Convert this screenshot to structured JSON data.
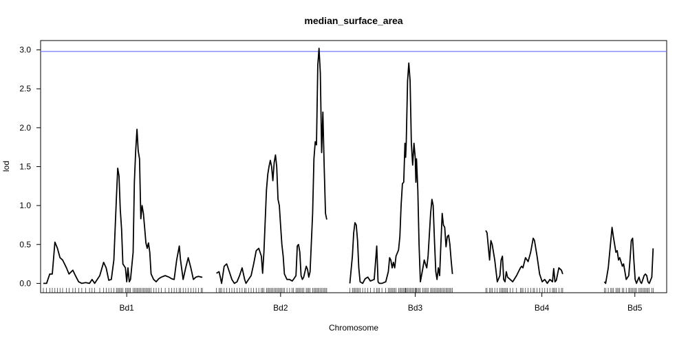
{
  "chart_data": {
    "type": "line",
    "title": "median_surface_area",
    "xlabel": "Chromosome",
    "ylabel": "lod",
    "ylim": [
      -0.12,
      3.12
    ],
    "yticks": [
      0.0,
      0.5,
      1.0,
      1.5,
      2.0,
      2.5,
      3.0
    ],
    "ytick_labels": [
      "0.0",
      "0.5",
      "1.0",
      "1.5",
      "2.0",
      "2.5",
      "3.0"
    ],
    "threshold": {
      "value": 2.98,
      "color": "#7777ff"
    },
    "grid": false,
    "line_color": "#000000",
    "chromosomes": [
      {
        "name": "Bd1",
        "start": 0,
        "length": 260,
        "points": [
          [
            0,
            0.0
          ],
          [
            5,
            0.0
          ],
          [
            10,
            0.12
          ],
          [
            14,
            0.12
          ],
          [
            18,
            0.53
          ],
          [
            22,
            0.45
          ],
          [
            26,
            0.33
          ],
          [
            30,
            0.3
          ],
          [
            36,
            0.2
          ],
          [
            40,
            0.12
          ],
          [
            46,
            0.17
          ],
          [
            50,
            0.1
          ],
          [
            55,
            0.02
          ],
          [
            60,
            0.0
          ],
          [
            66,
            0.01
          ],
          [
            72,
            0.0
          ],
          [
            76,
            0.05
          ],
          [
            80,
            0.0
          ],
          [
            88,
            0.1
          ],
          [
            94,
            0.27
          ],
          [
            98,
            0.2
          ],
          [
            102,
            0.04
          ],
          [
            106,
            0.05
          ],
          [
            110,
            0.3
          ],
          [
            114,
            1.1
          ],
          [
            116,
            1.48
          ],
          [
            118,
            1.38
          ],
          [
            120,
            0.95
          ],
          [
            122,
            0.7
          ],
          [
            124,
            0.25
          ],
          [
            128,
            0.2
          ],
          [
            130,
            0.02
          ],
          [
            132,
            0.2
          ],
          [
            134,
            0.02
          ],
          [
            136,
            0.05
          ],
          [
            140,
            0.4
          ],
          [
            142,
            1.3
          ],
          [
            144,
            1.7
          ],
          [
            146,
            1.98
          ],
          [
            148,
            1.7
          ],
          [
            150,
            1.6
          ],
          [
            152,
            0.83
          ],
          [
            154,
            1.0
          ],
          [
            156,
            0.9
          ],
          [
            158,
            0.72
          ],
          [
            160,
            0.52
          ],
          [
            162,
            0.45
          ],
          [
            164,
            0.52
          ],
          [
            166,
            0.4
          ],
          [
            168,
            0.12
          ],
          [
            172,
            0.05
          ],
          [
            176,
            0.02
          ],
          [
            180,
            0.06
          ],
          [
            184,
            0.08
          ],
          [
            190,
            0.1
          ],
          [
            196,
            0.08
          ],
          [
            200,
            0.06
          ],
          [
            204,
            0.05
          ],
          [
            208,
            0.3
          ],
          [
            212,
            0.48
          ],
          [
            214,
            0.3
          ],
          [
            218,
            0.05
          ],
          [
            222,
            0.2
          ],
          [
            226,
            0.33
          ],
          [
            230,
            0.2
          ],
          [
            234,
            0.05
          ],
          [
            238,
            0.08
          ],
          [
            242,
            0.09
          ],
          [
            246,
            0.08
          ],
          [
            248,
            0.08
          ]
        ]
      },
      {
        "name": "Bd2",
        "start": 270,
        "length": 200,
        "points": [
          [
            0,
            0.13
          ],
          [
            4,
            0.15
          ],
          [
            6,
            0.08
          ],
          [
            8,
            0.0
          ],
          [
            12,
            0.22
          ],
          [
            16,
            0.25
          ],
          [
            20,
            0.15
          ],
          [
            24,
            0.05
          ],
          [
            28,
            0.0
          ],
          [
            32,
            0.02
          ],
          [
            36,
            0.1
          ],
          [
            40,
            0.2
          ],
          [
            44,
            0.05
          ],
          [
            46,
            0.0
          ],
          [
            50,
            0.05
          ],
          [
            54,
            0.1
          ],
          [
            58,
            0.25
          ],
          [
            62,
            0.42
          ],
          [
            66,
            0.45
          ],
          [
            70,
            0.35
          ],
          [
            72,
            0.13
          ],
          [
            74,
            0.4
          ],
          [
            78,
            1.2
          ],
          [
            80,
            1.4
          ],
          [
            82,
            1.5
          ],
          [
            84,
            1.58
          ],
          [
            86,
            1.5
          ],
          [
            88,
            1.32
          ],
          [
            90,
            1.55
          ],
          [
            92,
            1.65
          ],
          [
            94,
            1.5
          ],
          [
            96,
            1.08
          ],
          [
            98,
            1.0
          ],
          [
            100,
            0.75
          ],
          [
            102,
            0.5
          ],
          [
            104,
            0.35
          ],
          [
            106,
            0.12
          ],
          [
            110,
            0.05
          ],
          [
            114,
            0.05
          ],
          [
            118,
            0.03
          ],
          [
            120,
            0.05
          ],
          [
            124,
            0.1
          ],
          [
            126,
            0.48
          ],
          [
            128,
            0.5
          ],
          [
            130,
            0.4
          ],
          [
            132,
            0.1
          ],
          [
            134,
            0.05
          ],
          [
            136,
            0.08
          ],
          [
            140,
            0.22
          ],
          [
            142,
            0.18
          ],
          [
            144,
            0.08
          ],
          [
            146,
            0.15
          ],
          [
            150,
            0.9
          ],
          [
            152,
            1.6
          ],
          [
            154,
            1.82
          ],
          [
            156,
            1.78
          ],
          [
            158,
            2.8
          ],
          [
            160,
            3.02
          ],
          [
            162,
            2.7
          ],
          [
            164,
            1.68
          ],
          [
            166,
            2.2
          ],
          [
            168,
            1.5
          ],
          [
            170,
            0.9
          ],
          [
            172,
            0.82
          ]
        ]
      },
      {
        "name": "Bd3",
        "start": 478,
        "length": 204,
        "points": [
          [
            0,
            0.0
          ],
          [
            4,
            0.35
          ],
          [
            6,
            0.65
          ],
          [
            8,
            0.78
          ],
          [
            10,
            0.75
          ],
          [
            12,
            0.55
          ],
          [
            14,
            0.2
          ],
          [
            16,
            0.02
          ],
          [
            20,
            0.0
          ],
          [
            24,
            0.06
          ],
          [
            28,
            0.08
          ],
          [
            32,
            0.03
          ],
          [
            38,
            0.05
          ],
          [
            42,
            0.48
          ],
          [
            44,
            0.02
          ],
          [
            46,
            0.0
          ],
          [
            50,
            0.0
          ],
          [
            56,
            0.02
          ],
          [
            60,
            0.15
          ],
          [
            62,
            0.33
          ],
          [
            64,
            0.3
          ],
          [
            66,
            0.2
          ],
          [
            68,
            0.27
          ],
          [
            70,
            0.2
          ],
          [
            72,
            0.35
          ],
          [
            76,
            0.43
          ],
          [
            78,
            0.6
          ],
          [
            80,
            1.0
          ],
          [
            82,
            1.28
          ],
          [
            84,
            1.3
          ],
          [
            86,
            1.8
          ],
          [
            87,
            1.62
          ],
          [
            88,
            1.82
          ],
          [
            90,
            2.6
          ],
          [
            92,
            2.83
          ],
          [
            94,
            2.6
          ],
          [
            96,
            1.8
          ],
          [
            98,
            1.52
          ],
          [
            100,
            1.8
          ],
          [
            102,
            1.62
          ],
          [
            103,
            1.3
          ],
          [
            104,
            1.6
          ],
          [
            106,
            1.2
          ],
          [
            108,
            0.5
          ],
          [
            110,
            0.02
          ],
          [
            114,
            0.2
          ],
          [
            116,
            0.3
          ],
          [
            118,
            0.25
          ],
          [
            120,
            0.2
          ],
          [
            122,
            0.35
          ],
          [
            126,
            0.9
          ],
          [
            128,
            1.08
          ],
          [
            130,
            1.0
          ],
          [
            132,
            0.55
          ],
          [
            134,
            0.15
          ],
          [
            136,
            0.05
          ],
          [
            138,
            0.2
          ],
          [
            140,
            0.1
          ],
          [
            142,
            0.5
          ],
          [
            144,
            0.9
          ],
          [
            146,
            0.75
          ],
          [
            148,
            0.72
          ],
          [
            150,
            0.47
          ],
          [
            152,
            0.6
          ],
          [
            154,
            0.62
          ],
          [
            156,
            0.5
          ],
          [
            158,
            0.3
          ],
          [
            160,
            0.12
          ]
        ]
      },
      {
        "name": "Bd4",
        "start": 690,
        "length": 175,
        "points": [
          [
            0,
            0.68
          ],
          [
            2,
            0.65
          ],
          [
            6,
            0.3
          ],
          [
            8,
            0.55
          ],
          [
            10,
            0.5
          ],
          [
            14,
            0.3
          ],
          [
            18,
            0.02
          ],
          [
            22,
            0.1
          ],
          [
            24,
            0.3
          ],
          [
            26,
            0.35
          ],
          [
            28,
            0.05
          ],
          [
            30,
            0.02
          ],
          [
            32,
            0.15
          ],
          [
            34,
            0.08
          ],
          [
            38,
            0.05
          ],
          [
            42,
            0.02
          ],
          [
            48,
            0.1
          ],
          [
            54,
            0.2
          ],
          [
            56,
            0.22
          ],
          [
            58,
            0.2
          ],
          [
            62,
            0.33
          ],
          [
            66,
            0.28
          ],
          [
            70,
            0.4
          ],
          [
            74,
            0.58
          ],
          [
            76,
            0.55
          ],
          [
            80,
            0.35
          ],
          [
            84,
            0.12
          ],
          [
            88,
            0.02
          ],
          [
            92,
            0.05
          ],
          [
            96,
            0.0
          ],
          [
            100,
            0.05
          ],
          [
            104,
            0.02
          ],
          [
            106,
            0.19
          ],
          [
            108,
            0.02
          ],
          [
            110,
            0.04
          ],
          [
            114,
            0.2
          ],
          [
            118,
            0.17
          ],
          [
            120,
            0.12
          ]
        ]
      },
      {
        "name": "Bd5",
        "start": 875,
        "length": 95,
        "points": [
          [
            0,
            0.02
          ],
          [
            2,
            0.0
          ],
          [
            6,
            0.2
          ],
          [
            10,
            0.55
          ],
          [
            12,
            0.72
          ],
          [
            14,
            0.6
          ],
          [
            18,
            0.4
          ],
          [
            20,
            0.42
          ],
          [
            22,
            0.3
          ],
          [
            24,
            0.33
          ],
          [
            28,
            0.22
          ],
          [
            30,
            0.25
          ],
          [
            34,
            0.05
          ],
          [
            38,
            0.1
          ],
          [
            40,
            0.3
          ],
          [
            42,
            0.55
          ],
          [
            44,
            0.58
          ],
          [
            46,
            0.3
          ],
          [
            48,
            0.05
          ],
          [
            50,
            0.0
          ],
          [
            54,
            0.08
          ],
          [
            56,
            0.02
          ],
          [
            58,
            0.0
          ],
          [
            60,
            0.05
          ],
          [
            62,
            0.1
          ],
          [
            64,
            0.12
          ],
          [
            66,
            0.1
          ],
          [
            68,
            0.02
          ],
          [
            70,
            0.0
          ],
          [
            74,
            0.08
          ],
          [
            76,
            0.45
          ]
        ]
      }
    ]
  }
}
